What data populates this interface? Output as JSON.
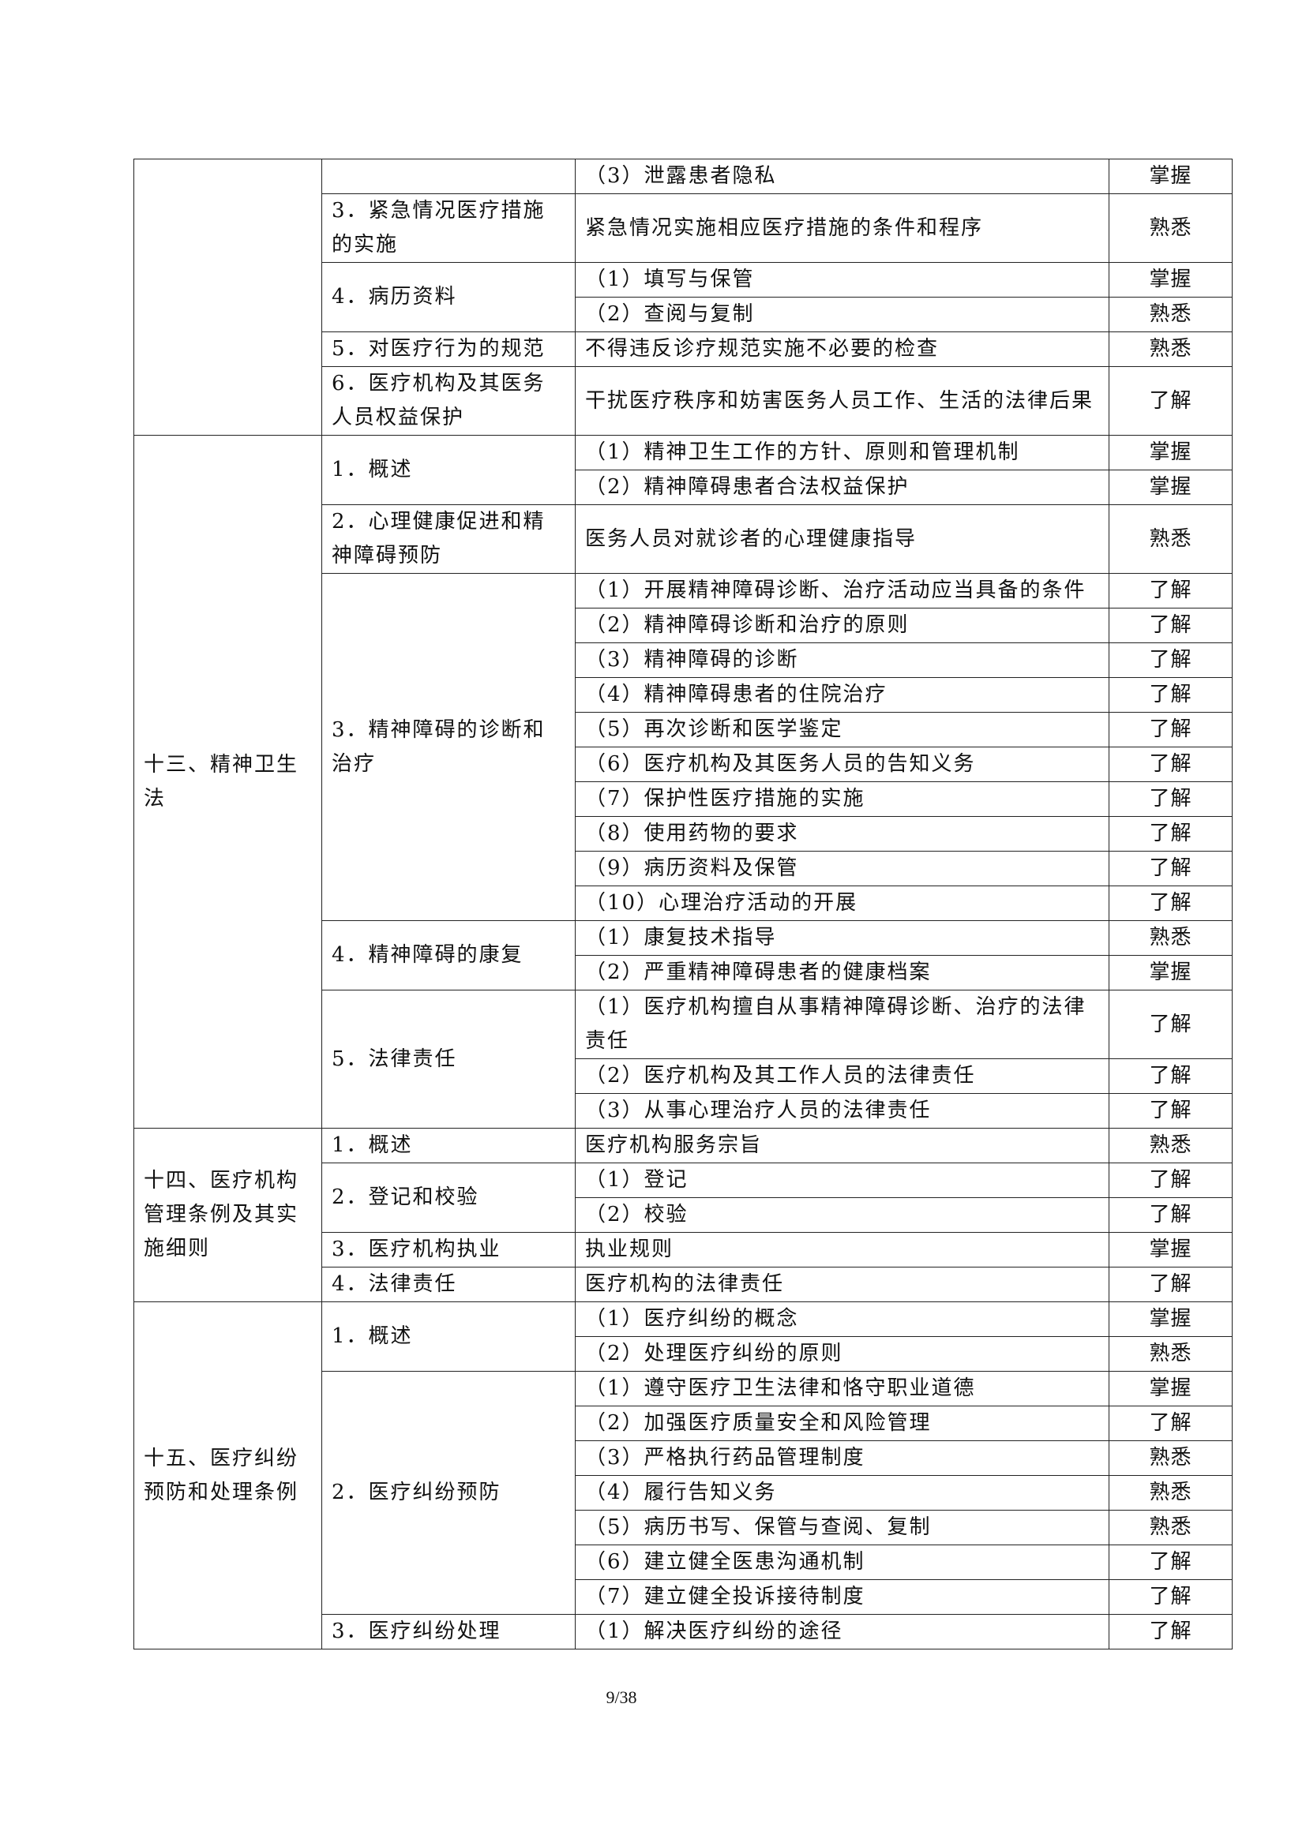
{
  "sections": [
    {
      "title": "",
      "topics": [
        {
          "title": "",
          "items": [
            {
              "text": "（3）泄露患者隐私",
              "level": "掌握"
            }
          ]
        },
        {
          "title": "3．紧急情况医疗措施的实施",
          "items": [
            {
              "text": "紧急情况实施相应医疗措施的条件和程序",
              "level": "熟悉"
            }
          ]
        },
        {
          "title": "4．病历资料",
          "items": [
            {
              "text": "（1）填写与保管",
              "level": "掌握"
            },
            {
              "text": "（2）查阅与复制",
              "level": "熟悉"
            }
          ]
        },
        {
          "title": "5．对医疗行为的规范",
          "items": [
            {
              "text": "不得违反诊疗规范实施不必要的检查",
              "level": "熟悉"
            }
          ]
        },
        {
          "title": "6．医疗机构及其医务人员权益保护",
          "items": [
            {
              "text": "干扰医疗秩序和妨害医务人员工作、生活的法律后果",
              "level": "了解"
            }
          ]
        }
      ]
    },
    {
      "title": "十三、精神卫生法",
      "topics": [
        {
          "title": "1．概述",
          "items": [
            {
              "text": "（1）精神卫生工作的方针、原则和管理机制",
              "level": "掌握"
            },
            {
              "text": "（2）精神障碍患者合法权益保护",
              "level": "掌握"
            }
          ]
        },
        {
          "title": "2．心理健康促进和精神障碍预防",
          "items": [
            {
              "text": "医务人员对就诊者的心理健康指导",
              "level": "熟悉"
            }
          ]
        },
        {
          "title": "3．精神障碍的诊断和治疗",
          "items": [
            {
              "text": "（1）开展精神障碍诊断、治疗活动应当具备的条件",
              "level": "了解"
            },
            {
              "text": "（2）精神障碍诊断和治疗的原则",
              "level": "了解"
            },
            {
              "text": "（3）精神障碍的诊断",
              "level": "了解"
            },
            {
              "text": "（4）精神障碍患者的住院治疗",
              "level": "了解"
            },
            {
              "text": "（5）再次诊断和医学鉴定",
              "level": "了解"
            },
            {
              "text": "（6）医疗机构及其医务人员的告知义务",
              "level": "了解"
            },
            {
              "text": "（7）保护性医疗措施的实施",
              "level": "了解"
            },
            {
              "text": "（8）使用药物的要求",
              "level": "了解"
            },
            {
              "text": "（9）病历资料及保管",
              "level": "了解"
            },
            {
              "text": "（10）心理治疗活动的开展",
              "level": "了解"
            }
          ]
        },
        {
          "title": "4．精神障碍的康复",
          "items": [
            {
              "text": "（1）康复技术指导",
              "level": "熟悉"
            },
            {
              "text": "（2）严重精神障碍患者的健康档案",
              "level": "掌握"
            }
          ]
        },
        {
          "title": "5．法律责任",
          "items": [
            {
              "text": "（1）医疗机构擅自从事精神障碍诊断、治疗的法律责任",
              "level": "了解"
            },
            {
              "text": "（2）医疗机构及其工作人员的法律责任",
              "level": "了解"
            },
            {
              "text": "（3）从事心理治疗人员的法律责任",
              "level": "了解"
            }
          ]
        }
      ]
    },
    {
      "title": "十四、医疗机构管理条例及其实施细则",
      "topics": [
        {
          "title": "1．概述",
          "items": [
            {
              "text": "医疗机构服务宗旨",
              "level": "熟悉"
            }
          ]
        },
        {
          "title": "2．登记和校验",
          "items": [
            {
              "text": "（1）登记",
              "level": "了解"
            },
            {
              "text": "（2）校验",
              "level": "了解"
            }
          ]
        },
        {
          "title": "3．医疗机构执业",
          "items": [
            {
              "text": "执业规则",
              "level": "掌握"
            }
          ]
        },
        {
          "title": "4．法律责任",
          "items": [
            {
              "text": "医疗机构的法律责任",
              "level": "了解"
            }
          ]
        }
      ]
    },
    {
      "title": "十五、医疗纠纷预防和处理条例",
      "topics": [
        {
          "title": "1．概述",
          "items": [
            {
              "text": "（1）医疗纠纷的概念",
              "level": "掌握"
            },
            {
              "text": "（2）处理医疗纠纷的原则",
              "level": "熟悉"
            }
          ]
        },
        {
          "title": "2．医疗纠纷预防",
          "items": [
            {
              "text": "（1）遵守医疗卫生法律和恪守职业道德",
              "level": "掌握"
            },
            {
              "text": "（2）加强医疗质量安全和风险管理",
              "level": "了解"
            },
            {
              "text": "（3）严格执行药品管理制度",
              "level": "熟悉"
            },
            {
              "text": "（4）履行告知义务",
              "level": "熟悉"
            },
            {
              "text": "（5）病历书写、保管与查阅、复制",
              "level": "熟悉"
            },
            {
              "text": "（6）建立健全医患沟通机制",
              "level": "了解"
            },
            {
              "text": "（7）建立健全投诉接待制度",
              "level": "了解"
            }
          ]
        },
        {
          "title": "3．医疗纠纷处理",
          "items": [
            {
              "text": "（1）解决医疗纠纷的途径",
              "level": "了解"
            }
          ]
        }
      ]
    }
  ],
  "footer": {
    "page_number": "9/38"
  }
}
